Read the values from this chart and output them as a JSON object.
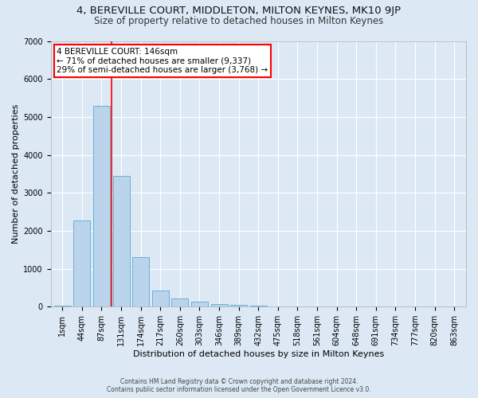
{
  "title1": "4, BEREVILLE COURT, MIDDLETON, MILTON KEYNES, MK10 9JP",
  "title2": "Size of property relative to detached houses in Milton Keynes",
  "xlabel": "Distribution of detached houses by size in Milton Keynes",
  "ylabel": "Number of detached properties",
  "footnote1": "Contains HM Land Registry data © Crown copyright and database right 2024.",
  "footnote2": "Contains public sector information licensed under the Open Government Licence v3.0.",
  "bar_labels": [
    "1sqm",
    "44sqm",
    "87sqm",
    "131sqm",
    "174sqm",
    "217sqm",
    "260sqm",
    "303sqm",
    "346sqm",
    "389sqm",
    "432sqm",
    "475sqm",
    "518sqm",
    "561sqm",
    "604sqm",
    "648sqm",
    "691sqm",
    "734sqm",
    "777sqm",
    "820sqm",
    "863sqm"
  ],
  "bar_values": [
    30,
    2280,
    5300,
    3450,
    1300,
    430,
    210,
    130,
    70,
    50,
    30,
    5,
    0,
    0,
    0,
    0,
    0,
    0,
    0,
    0,
    0
  ],
  "bar_color": "#bad4ec",
  "bar_edge_color": "#6aaed6",
  "property_line_x": 2.5,
  "annotation_text": "4 BEREVILLE COURT: 146sqm\n← 71% of detached houses are smaller (9,337)\n29% of semi-detached houses are larger (3,768) →",
  "annotation_box_color": "white",
  "annotation_box_edge_color": "red",
  "vline_color": "red",
  "ylim": [
    0,
    7000
  ],
  "yticks": [
    0,
    1000,
    2000,
    3000,
    4000,
    5000,
    6000,
    7000
  ],
  "bg_color": "#dce9f5",
  "plot_bg_color": "#dce9f5",
  "grid_color": "white",
  "title1_fontsize": 9.5,
  "title2_fontsize": 8.5,
  "xlabel_fontsize": 8,
  "ylabel_fontsize": 8,
  "tick_fontsize": 7
}
